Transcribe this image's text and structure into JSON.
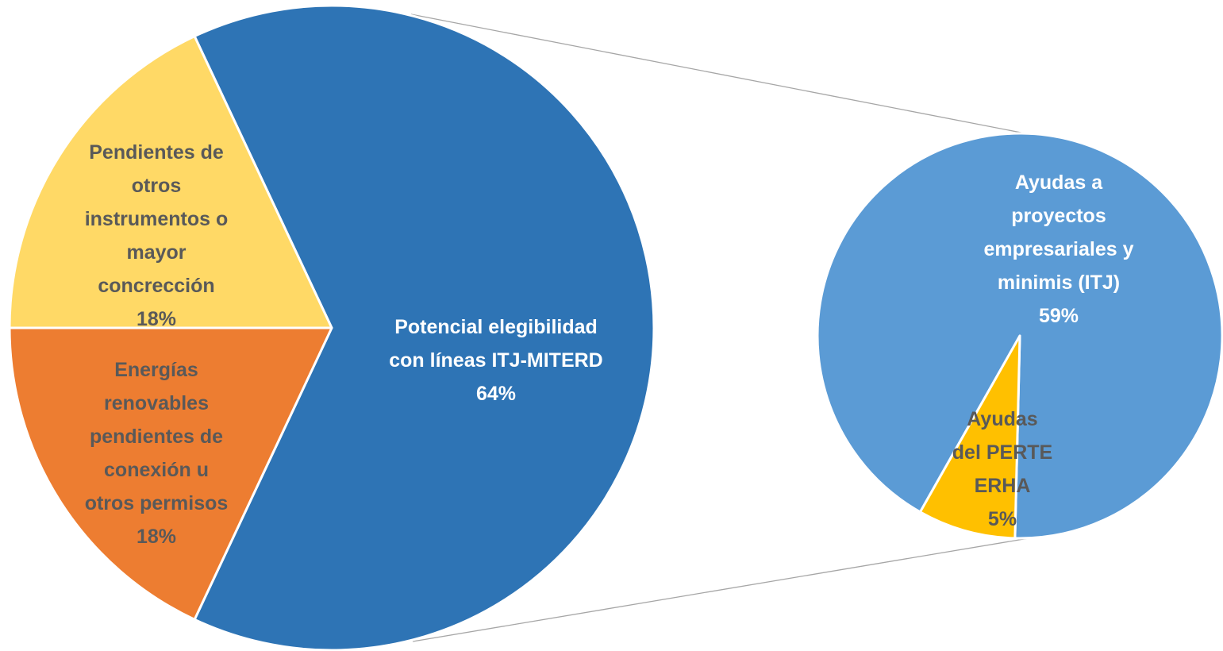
{
  "chart_data": {
    "type": "pie",
    "variant": "pie-of-pie",
    "main_pie": {
      "slices": [
        {
          "label": "Potencial elegibilidad con líneas ITJ-MITERD",
          "value": 64,
          "pct_label": "64%",
          "color": "#2E74B5",
          "label_color": "#FFFFFF"
        },
        {
          "label": "Energías renovables pendientes de conexión u otros permisos",
          "value": 18,
          "pct_label": "18%",
          "color": "#FFD966",
          "label_color": "#595959"
        },
        {
          "label": "Pendientes de otros instrumentos o mayor concrección",
          "value": 18,
          "pct_label": "18%",
          "color": "#ED7D31",
          "label_color": "#595959"
        }
      ]
    },
    "secondary_pie": {
      "slices": [
        {
          "label": "Ayudas a proyectos empresariales y minimis (ITJ)",
          "value": 59,
          "pct_label": "59%",
          "color": "#5B9BD5",
          "label_color": "#FFFFFF"
        },
        {
          "label": "Ayudas del PERTE ERHA",
          "value": 5,
          "pct_label": "5%",
          "color": "#FFC000",
          "label_color": "#595959"
        }
      ]
    },
    "connector_color": "#A6A6A6",
    "legend": "none"
  }
}
